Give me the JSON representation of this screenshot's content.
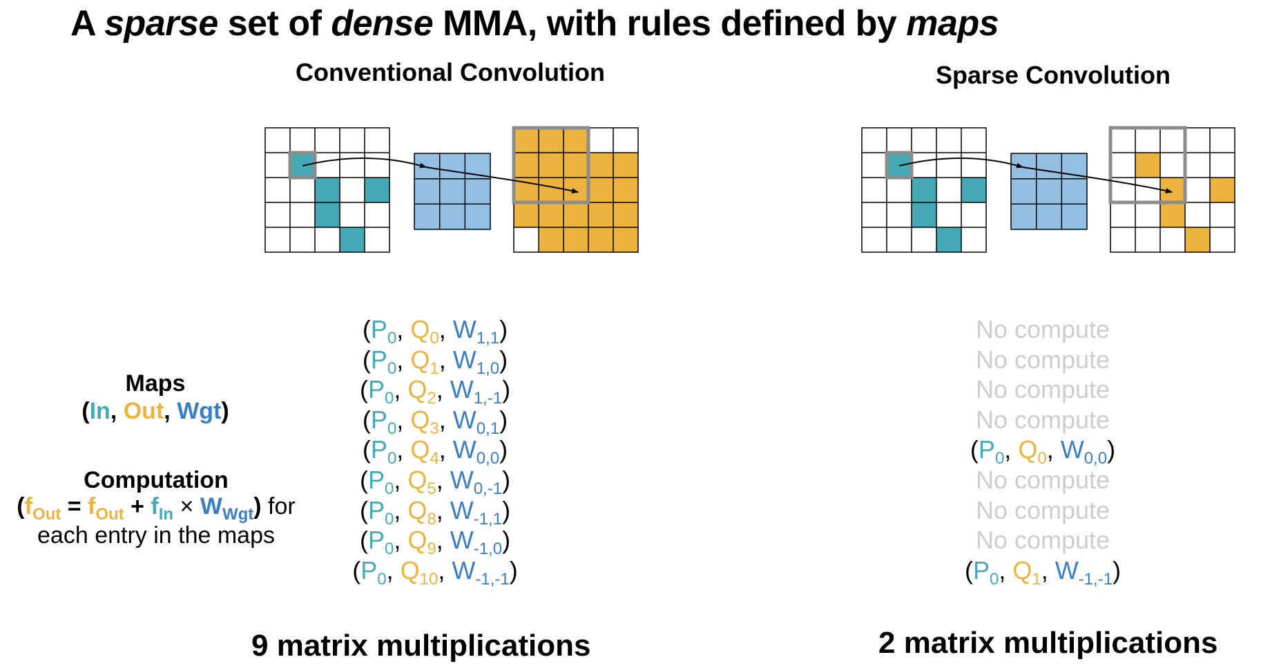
{
  "title": {
    "p1": "A ",
    "p2": "sparse",
    "p3": " set of ",
    "p4": "dense",
    "p5": " MMA, with rules defined by ",
    "p6": "maps"
  },
  "conventional": {
    "title": "Conventional Convolution",
    "entries": [
      {
        "p": "P",
        "ps": "0",
        "q": "Q",
        "qs": "0",
        "w": "W",
        "ws": "1,1"
      },
      {
        "p": "P",
        "ps": "0",
        "q": "Q",
        "qs": "1",
        "w": "W",
        "ws": "1,0"
      },
      {
        "p": "P",
        "ps": "0",
        "q": "Q",
        "qs": "2",
        "w": "W",
        "ws": "1,-1"
      },
      {
        "p": "P",
        "ps": "0",
        "q": "Q",
        "qs": "3",
        "w": "W",
        "ws": "0,1"
      },
      {
        "p": "P",
        "ps": "0",
        "q": "Q",
        "qs": "4",
        "w": "W",
        "ws": "0,0"
      },
      {
        "p": "P",
        "ps": "0",
        "q": "Q",
        "qs": "5",
        "w": "W",
        "ws": "0,-1"
      },
      {
        "p": "P",
        "ps": "0",
        "q": "Q",
        "qs": "8",
        "w": "W",
        "ws": "-1,1"
      },
      {
        "p": "P",
        "ps": "0",
        "q": "Q",
        "qs": "9",
        "w": "W",
        "ws": "-1,0"
      },
      {
        "p": "P",
        "ps": "0",
        "q": "Q",
        "qs": "10",
        "w": "W",
        "ws": "-1,-1"
      }
    ],
    "count": "9 matrix multiplications"
  },
  "sparse": {
    "title": "Sparse Convolution",
    "no_compute": "No compute",
    "entries": [
      {
        "p": "P",
        "ps": "0",
        "q": "Q",
        "qs": "0",
        "w": "W",
        "ws": "0,0"
      },
      {
        "p": "P",
        "ps": "0",
        "q": "Q",
        "qs": "1",
        "w": "W",
        "ws": "-1,-1"
      }
    ],
    "count": "2 matrix multiplications"
  },
  "legend": {
    "maps_heading": "Maps",
    "maps_in": "In",
    "maps_out": "Out",
    "maps_wgt": "Wgt",
    "comp_heading": "Computation",
    "f": "f",
    "sub_out": "Out",
    "sub_in": "In",
    "w": "W",
    "sub_wgt": "Wgt",
    "comp_tail": "for",
    "comp_line3": "each entry in the maps"
  },
  "colors": {
    "input": "#45aab5",
    "output": "#ecb43d",
    "weight": "#93bfe3",
    "weight_text": "#3a7fc4",
    "window": "#8c8c8c",
    "disabled": "#cdcdcd"
  }
}
